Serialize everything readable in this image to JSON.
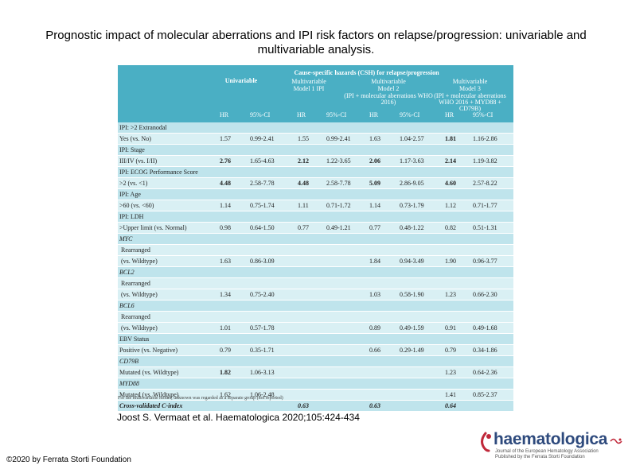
{
  "title": "Prognostic impact of molecular aberrations and IPI risk factors on relapse/progression: univariable and multivariable analysis.",
  "citation": "Joost S. Vermaat et al. Haematologica 2020;105:424-434",
  "copyright": "©2020 by Ferrata Storti Foundation",
  "logo": {
    "word": "haematologica",
    "tagline1": "Journal of the European Hematology Association",
    "tagline2": "Published by the Ferrata Storti Foundation"
  },
  "colors": {
    "header": "#4aafc4",
    "band": "#bfe4ec",
    "row": "#d9f0f4",
    "logo": "#2e4a7d",
    "logo_accent": "#c0283a"
  },
  "table": {
    "super_header": "Cause-specific hazards (CSH) for relapse/progression",
    "univariable": "Univariable",
    "models": [
      {
        "line1": "Multivariable",
        "line2": "Model 1 IPI",
        "line3": ""
      },
      {
        "line1": "Multivariable",
        "line2": "Model 2",
        "line3": "(IPI + molecular aberrations WHO 2016)"
      },
      {
        "line1": "Multivariable",
        "line2": "Model 3",
        "line3": "(IPI + molecular aberrations WHO 2016 + MYD88 + CD79B)"
      }
    ],
    "col_headers": [
      "HR",
      "95%-CI",
      "HR",
      "95%-CI",
      "HR",
      "95%-CI",
      "HR",
      "95%-CI"
    ],
    "rows": [
      {
        "type": "lab",
        "label": "IPI: >2 Extranodal"
      },
      {
        "type": "dat",
        "label": "Yes (vs. No)",
        "v": [
          "1.57",
          "0.99-2.41",
          "1.55",
          "0.99-2.41",
          "1.63",
          "1.04-2.57",
          "1.81",
          "1.16-2.86"
        ],
        "b": [
          false,
          false,
          false,
          false,
          false,
          false,
          true,
          false
        ]
      },
      {
        "type": "lab",
        "label": "IPI: Stage"
      },
      {
        "type": "dat",
        "label": "III/IV (vs. I/II)",
        "v": [
          "2.76",
          "1.65-4.63",
          "2.12",
          "1.22-3.65",
          "2.06",
          "1.17-3.63",
          "2.14",
          "1.19-3.82"
        ],
        "b": [
          true,
          false,
          true,
          false,
          true,
          false,
          true,
          false
        ]
      },
      {
        "type": "lab",
        "label": "IPI: ECOG Performance Score"
      },
      {
        "type": "dat",
        "label": ">2 (vs. <1)",
        "v": [
          "4.48",
          "2.58-7.78",
          "4.48",
          "2.58-7.78",
          "5.09",
          "2.86-9.05",
          "4.60",
          "2.57-8.22"
        ],
        "b": [
          true,
          false,
          true,
          false,
          true,
          false,
          true,
          false
        ]
      },
      {
        "type": "lab",
        "label": "IPI: Age"
      },
      {
        "type": "dat",
        "label": ">60 (vs. <60)",
        "v": [
          "1.14",
          "0.75-1.74",
          "1.11",
          "0.71-1.72",
          "1.14",
          "0.73-1.79",
          "1.12",
          "0.71-1.77"
        ],
        "b": [
          false,
          false,
          false,
          false,
          false,
          false,
          false,
          false
        ]
      },
      {
        "type": "lab",
        "label": "IPI: LDH"
      },
      {
        "type": "dat",
        "label": ">Upper limit (vs. Normal)",
        "v": [
          "0.98",
          "0.64-1.50",
          "0.77",
          "0.49-1.21",
          "0.77",
          "0.48-1.22",
          "0.82",
          "0.51-1.31"
        ],
        "b": [
          false,
          false,
          false,
          false,
          false,
          false,
          false,
          false
        ]
      },
      {
        "type": "lab",
        "label": "MYC",
        "italic": true
      },
      {
        "type": "dat",
        "label": "Rearranged",
        "ind": true
      },
      {
        "type": "dat",
        "label": "(vs. Wildtype)",
        "ind": true,
        "v": [
          "1.63",
          "0.86-3.09",
          "",
          "",
          "1.84",
          "0.94-3.49",
          "1.90",
          "0.96-3.77"
        ],
        "b": [
          false,
          false,
          false,
          false,
          false,
          false,
          false,
          false
        ]
      },
      {
        "type": "lab",
        "label": "BCL2",
        "italic": true
      },
      {
        "type": "dat",
        "label": "Rearranged",
        "ind": true
      },
      {
        "type": "dat",
        "label": "(vs. Wildtype)",
        "ind": true,
        "v": [
          "1.34",
          "0.75-2.40",
          "",
          "",
          "1.03",
          "0.58-1.90",
          "1.23",
          "0.66-2.30"
        ],
        "b": [
          false,
          false,
          false,
          false,
          false,
          false,
          false,
          false
        ]
      },
      {
        "type": "lab",
        "label": "BCL6",
        "italic": true
      },
      {
        "type": "dat",
        "label": "Rearranged",
        "ind": true
      },
      {
        "type": "dat",
        "label": "(vs. Wildtype)",
        "ind": true,
        "v": [
          "1.01",
          "0.57-1.78",
          "",
          "",
          "0.89",
          "0.49-1.59",
          "0.91",
          "0.49-1.68"
        ],
        "b": [
          false,
          false,
          false,
          false,
          false,
          false,
          false,
          false
        ]
      },
      {
        "type": "lab",
        "label": "EBV Status"
      },
      {
        "type": "dat",
        "label": "Positive (vs. Negative)",
        "v": [
          "0.79",
          "0.35-1.71",
          "",
          "",
          "0.66",
          "0.29-1.49",
          "0.79",
          "0.34-1.86"
        ],
        "b": [
          false,
          false,
          false,
          false,
          false,
          false,
          false,
          false
        ]
      },
      {
        "type": "lab",
        "label": "CD79B",
        "italic": true
      },
      {
        "type": "dat",
        "label": "Mutated (vs. Wildtype)",
        "v": [
          "1.82",
          "1.06-3.13",
          "",
          "",
          "",
          "",
          "1.23",
          "0.64-2.36"
        ],
        "b": [
          true,
          false,
          false,
          false,
          false,
          false,
          false,
          false
        ]
      },
      {
        "type": "lab",
        "label": "MYD88",
        "italic": true
      },
      {
        "type": "dat",
        "label": "Mutated (vs. Wildtype)",
        "v": [
          "1.62",
          "1.06-2.48",
          "",
          "",
          "",
          "",
          "1.41",
          "0.85-2.37"
        ],
        "b": [
          false,
          false,
          false,
          false,
          false,
          false,
          false,
          false
        ]
      },
      {
        "type": "cv",
        "label": "Cross-validated C-index",
        "v": [
          "",
          "",
          "0.63",
          "",
          "0.63",
          "",
          "0.64",
          ""
        ],
        "b": [
          false,
          false,
          true,
          false,
          true,
          false,
          true,
          false
        ]
      }
    ],
    "footnote": "For the multivariable model, unknown was regarded as a separate group (not reported)"
  }
}
